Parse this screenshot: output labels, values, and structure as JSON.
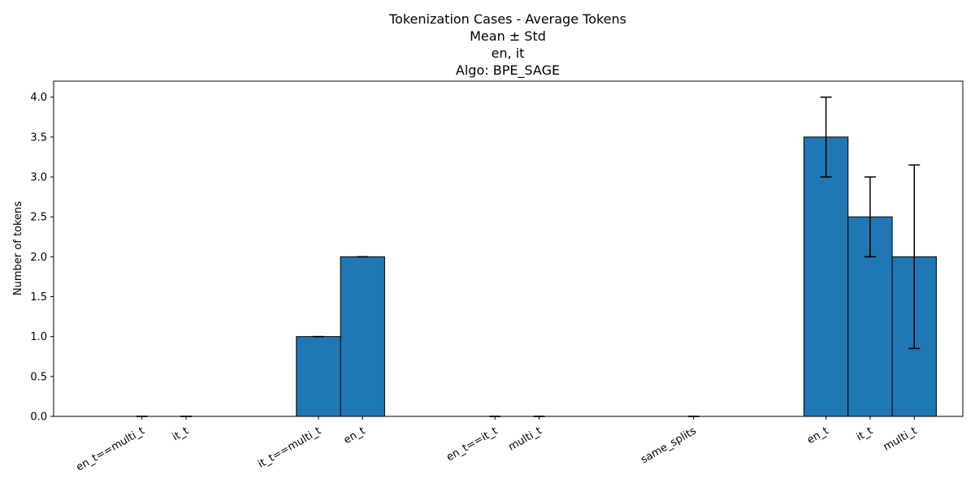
{
  "chart_data": {
    "type": "bar",
    "title_lines": [
      "Tokenization Cases - Average Tokens",
      "Mean ± Std",
      "en, it",
      "Algo: BPE_SAGE"
    ],
    "xlabel": "",
    "ylabel": "Number of tokens",
    "ylim": [
      0,
      4.2
    ],
    "yticks": [
      "0.0",
      "0.5",
      "1.0",
      "1.5",
      "2.0",
      "2.5",
      "3.0",
      "3.5",
      "4.0"
    ],
    "bar_color": "#1f77b4",
    "edge_color": "#000000",
    "grid": false,
    "bars": [
      {
        "label": "en_t==multi_t",
        "x": 0.0,
        "value": 0.0,
        "std": 0.0
      },
      {
        "label": "it_t",
        "x": 0.5,
        "value": 0.0,
        "std": 0.0
      },
      {
        "label": "it_t==multi_t",
        "x": 2.0,
        "value": 1.0,
        "std": 0.0
      },
      {
        "label": "en_t",
        "x": 2.5,
        "value": 2.0,
        "std": 0.0
      },
      {
        "label": "en_t==it_t",
        "x": 4.0,
        "value": 0.0,
        "std": 0.0
      },
      {
        "label": "multi_t",
        "x": 4.5,
        "value": 0.0,
        "std": 0.0
      },
      {
        "label": "same_splits",
        "x": 6.25,
        "value": 0.0,
        "std": 0.0
      },
      {
        "label": "en_t",
        "x": 7.75,
        "value": 3.5,
        "std": 0.5
      },
      {
        "label": "it_t",
        "x": 8.25,
        "value": 2.5,
        "std": 0.5
      },
      {
        "label": "multi_t",
        "x": 8.75,
        "value": 2.0,
        "std": 1.15
      }
    ]
  }
}
